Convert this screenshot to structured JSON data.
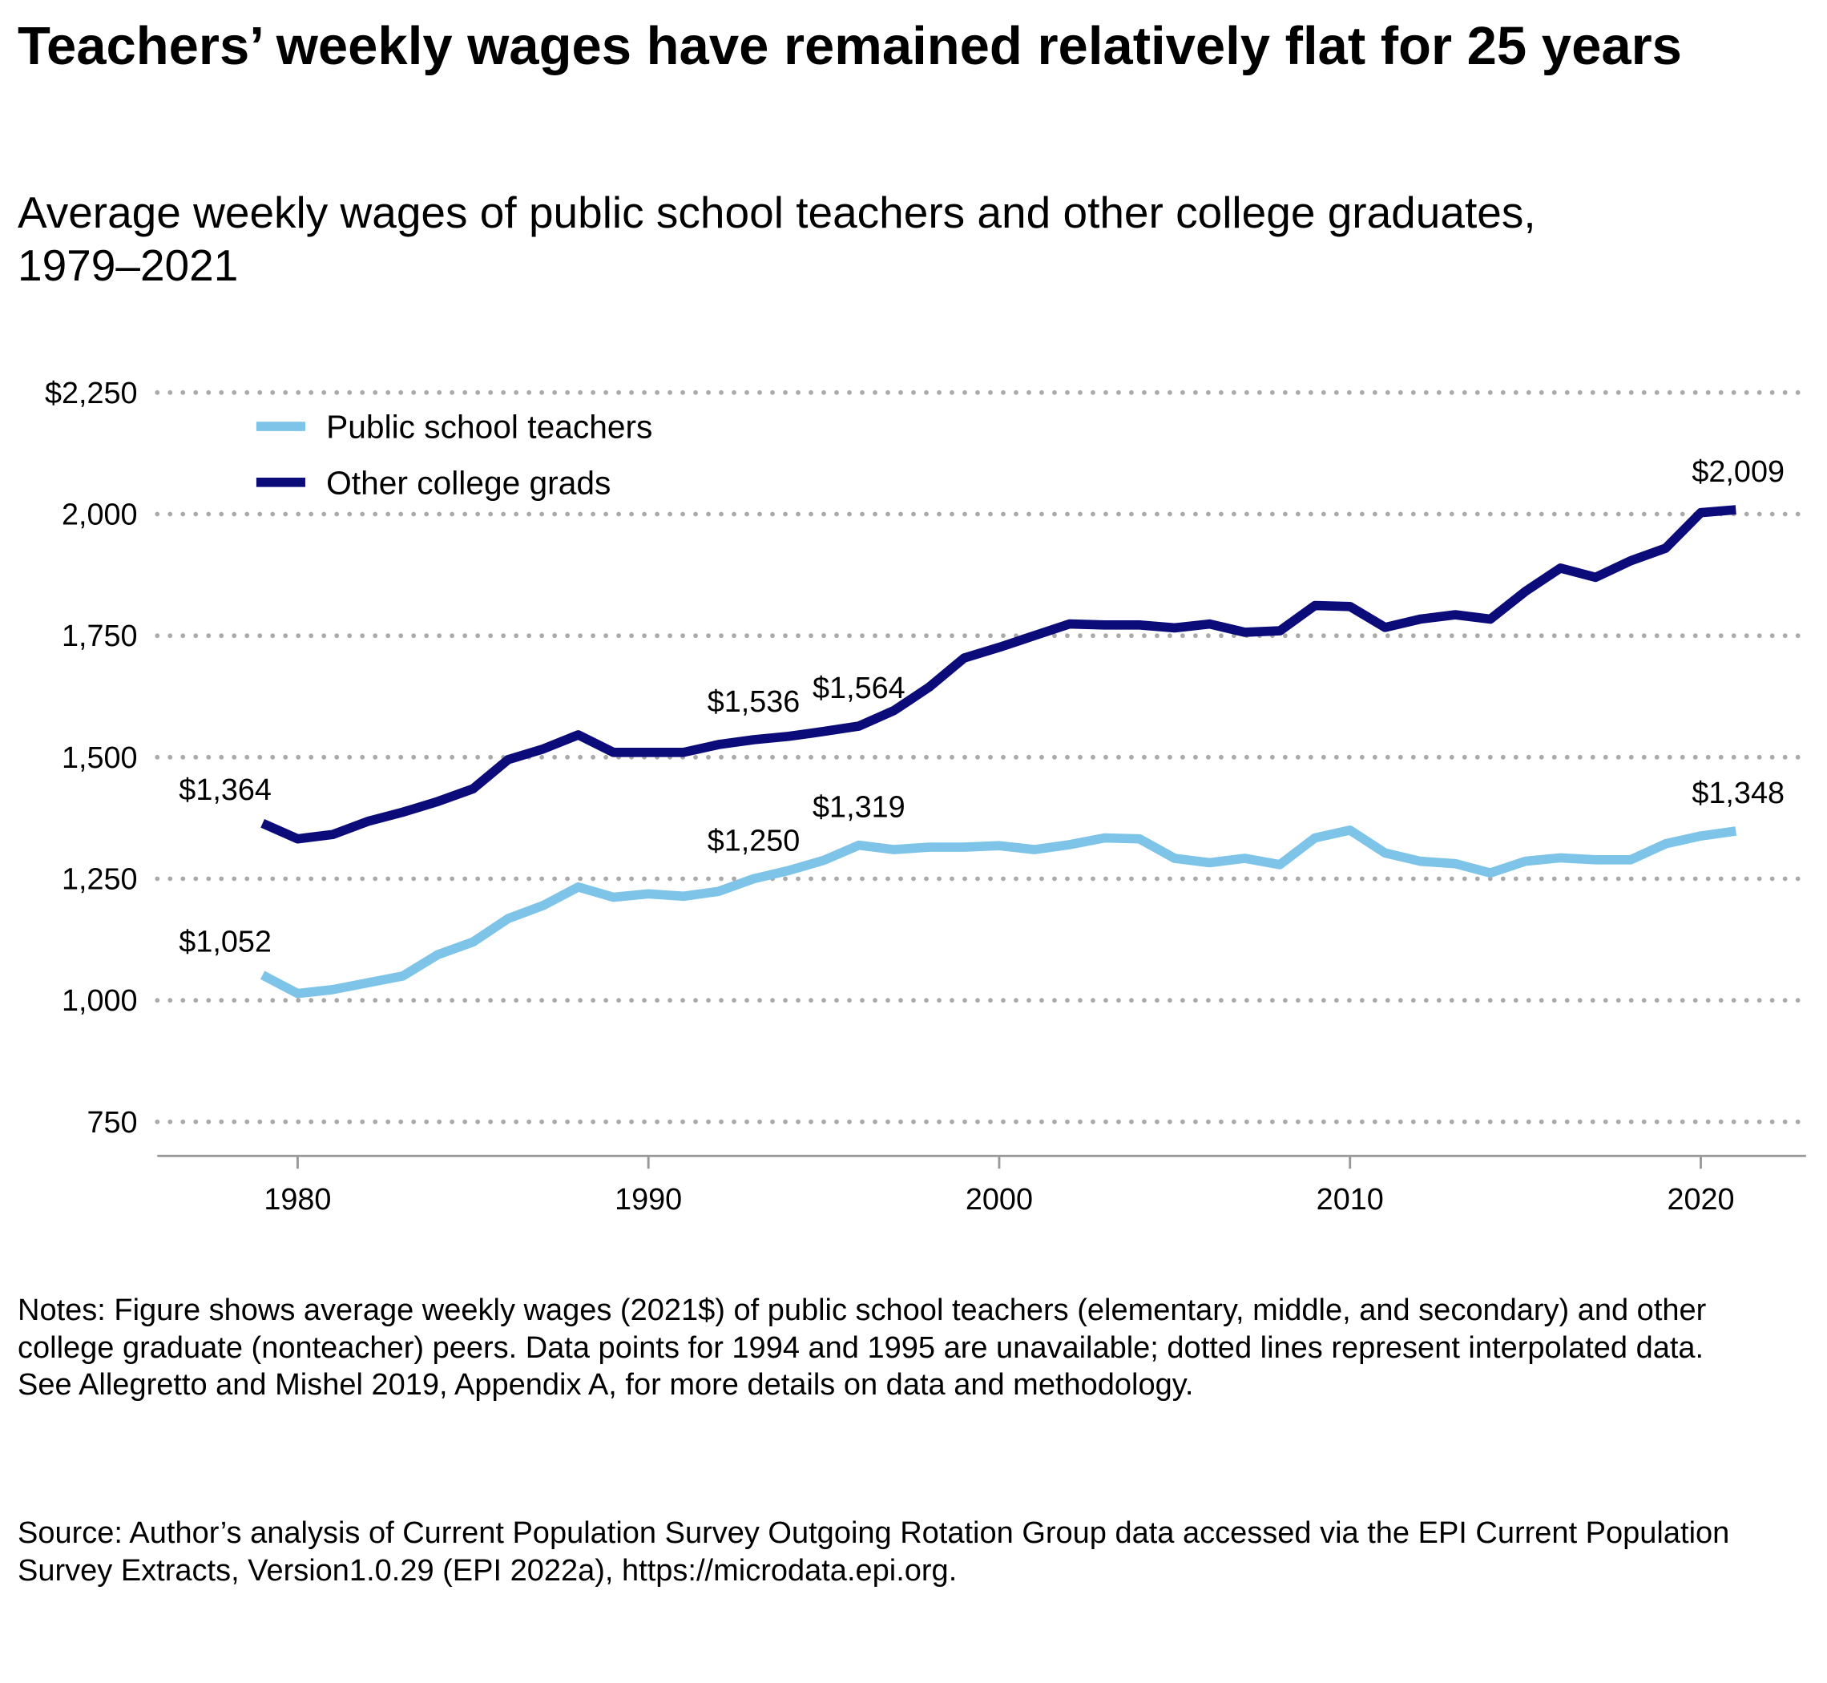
{
  "chart_data": {
    "type": "line",
    "title": "Teachers’ weekly wages have remained relatively flat for 25 years",
    "subtitle": "Average weekly wages of public school teachers and other college graduates, 1979–2021",
    "x": [
      1979,
      1980,
      1981,
      1982,
      1983,
      1984,
      1985,
      1986,
      1987,
      1988,
      1989,
      1990,
      1991,
      1992,
      1993,
      1994,
      1995,
      1996,
      1997,
      1998,
      1999,
      2000,
      2001,
      2002,
      2003,
      2004,
      2005,
      2006,
      2007,
      2008,
      2009,
      2010,
      2011,
      2012,
      2013,
      2014,
      2015,
      2016,
      2017,
      2018,
      2019,
      2020,
      2021
    ],
    "series": [
      {
        "name": "Public school teachers",
        "color": "#7ec4e8",
        "values": [
          1052,
          1014,
          1022,
          1036,
          1050,
          1094,
          1120,
          1168,
          1195,
          1233,
          1212,
          1219,
          1214,
          1224,
          1250,
          1267,
          1288,
          1319,
          1310,
          1315,
          1315,
          1318,
          1310,
          1320,
          1334,
          1332,
          1292,
          1283,
          1292,
          1279,
          1334,
          1350,
          1303,
          1286,
          1281,
          1262,
          1286,
          1293,
          1289,
          1289,
          1322,
          1338,
          1348
        ],
        "value_labels": [
          "$1,052",
          null,
          null,
          null,
          null,
          null,
          null,
          null,
          null,
          null,
          null,
          null,
          null,
          null,
          "$1,250",
          null,
          null,
          "$1,319",
          null,
          null,
          null,
          null,
          null,
          null,
          null,
          null,
          null,
          null,
          null,
          null,
          null,
          null,
          null,
          null,
          null,
          null,
          null,
          null,
          null,
          null,
          null,
          null,
          "$1,348"
        ]
      },
      {
        "name": "Other college grads",
        "color": "#0b0b7a",
        "values": [
          1364,
          1332,
          1341,
          1368,
          1387,
          1409,
          1435,
          1495,
          1517,
          1546,
          1510,
          1510,
          1510,
          1526,
          1536,
          1543,
          1553,
          1564,
          1596,
          1644,
          1704,
          1726,
          1750,
          1774,
          1772,
          1772,
          1766,
          1774,
          1757,
          1760,
          1812,
          1810,
          1767,
          1784,
          1793,
          1784,
          1841,
          1889,
          1870,
          1904,
          1930,
          2003,
          2009
        ],
        "value_labels": [
          "$1,364",
          null,
          null,
          null,
          null,
          null,
          null,
          null,
          null,
          null,
          null,
          null,
          null,
          null,
          "$1,536",
          null,
          null,
          "$1,564",
          null,
          null,
          null,
          null,
          null,
          null,
          null,
          null,
          null,
          null,
          null,
          null,
          null,
          null,
          null,
          null,
          null,
          null,
          null,
          null,
          null,
          null,
          null,
          null,
          "$2,009"
        ]
      }
    ],
    "xlim": [
      1976,
      2023
    ],
    "xticks": [
      1980,
      1990,
      2000,
      2010,
      2020
    ],
    "ylim": [
      680,
      2250
    ],
    "yticks": [
      750,
      {
        "value": 1000,
        "label": "1,000"
      },
      {
        "value": 1250,
        "label": "1,250"
      },
      {
        "value": 1500,
        "label": "1,500"
      },
      {
        "value": 1750,
        "label": "1,750"
      },
      {
        "value": 2000,
        "label": "2,000"
      },
      {
        "value": 2250,
        "label": "$2,250"
      }
    ],
    "grid": true,
    "legend": "top-left",
    "notes": "Notes: Figure shows average weekly wages (2021$) of public school teachers (elementary, middle, and secondary) and other college graduate (nonteacher) peers. Data points for 1994 and 1995 are unavailable; dotted lines represent interpolated data. See Allegretto and Mishel 2019, Appendix A, for more details on data and methodology.",
    "source": "Source: Author’s analysis of Current Population Survey Outgoing Rotation Group data accessed via the EPI Current Population Survey Extracts, Version1.0.29 (EPI 2022a), https://microdata.epi.org."
  }
}
